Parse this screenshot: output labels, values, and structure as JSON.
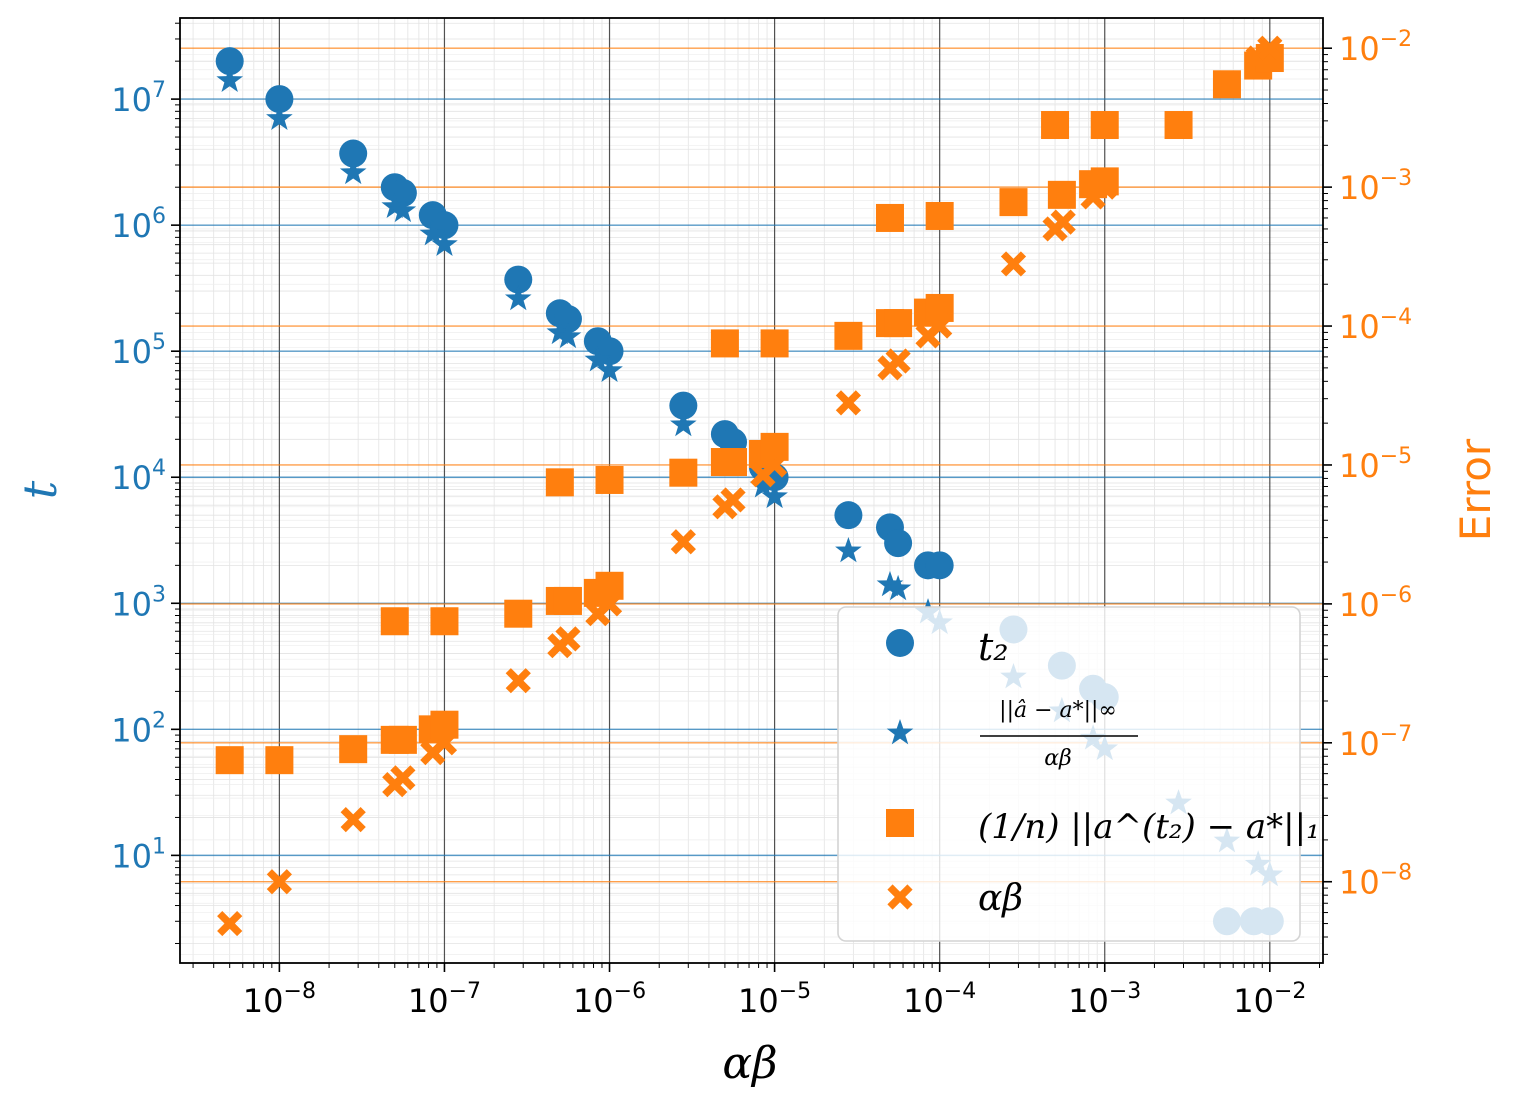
{
  "chart_data": {
    "type": "scatter",
    "xlabel": "αβ",
    "ylabel_left": "t",
    "ylabel_right": "Error",
    "x_scale": "log",
    "y_left_scale": "log",
    "y_right_scale": "log",
    "xlim": [
      2.5e-09,
      0.021
    ],
    "ylim_left": [
      1.4,
      44000000
    ],
    "ylim_right": [
      2.6e-09,
      0.0165
    ],
    "grid": true,
    "legend_position": "lower-right",
    "colors": {
      "t_axis": "#1f77b4",
      "error_axis": "#ff7f0e",
      "blue": "#1f77b4",
      "orange": "#ff7f0e"
    },
    "x_ticks": [
      {
        "value": 1e-08,
        "base": "10",
        "exp": "−8"
      },
      {
        "value": 1e-07,
        "base": "10",
        "exp": "−7"
      },
      {
        "value": 1e-06,
        "base": "10",
        "exp": "−6"
      },
      {
        "value": 1e-05,
        "base": "10",
        "exp": "−5"
      },
      {
        "value": 0.0001,
        "base": "10",
        "exp": "−4"
      },
      {
        "value": 0.001,
        "base": "10",
        "exp": "−3"
      },
      {
        "value": 0.01,
        "base": "10",
        "exp": "−2"
      }
    ],
    "y_left_ticks": [
      {
        "value": 10,
        "base": "10",
        "exp": "1"
      },
      {
        "value": 100,
        "base": "10",
        "exp": "2"
      },
      {
        "value": 1000,
        "base": "10",
        "exp": "3"
      },
      {
        "value": 10000,
        "base": "10",
        "exp": "4"
      },
      {
        "value": 100000,
        "base": "10",
        "exp": "5"
      },
      {
        "value": 1000000,
        "base": "10",
        "exp": "6"
      },
      {
        "value": 10000000,
        "base": "10",
        "exp": "7"
      }
    ],
    "y_right_ticks": [
      {
        "value": 1e-08,
        "base": "10",
        "exp": "−8"
      },
      {
        "value": 1e-07,
        "base": "10",
        "exp": "−7"
      },
      {
        "value": 1e-06,
        "base": "10",
        "exp": "−6"
      },
      {
        "value": 1e-05,
        "base": "10",
        "exp": "−5"
      },
      {
        "value": 0.0001,
        "base": "10",
        "exp": "−4"
      },
      {
        "value": 0.001,
        "base": "10",
        "exp": "−3"
      },
      {
        "value": 0.01,
        "base": "10",
        "exp": "−2"
      }
    ],
    "legend_labels": {
      "t2": "t₂",
      "ratio_numerator": "||â − a*||∞",
      "ratio_denominator": "αβ",
      "error_l1": "(1/n) ||a^(t₂) − a*||₁",
      "alpha_beta": "αβ"
    },
    "series": [
      {
        "name": "t₂",
        "axis": "left",
        "marker": "circle",
        "color": "#1f77b4",
        "points": [
          [
            5e-09,
            20000000
          ],
          [
            1e-08,
            10000000
          ],
          [
            2.8e-08,
            3700000
          ],
          [
            5e-08,
            2000000
          ],
          [
            5.6e-08,
            1800000
          ],
          [
            8.5e-08,
            1200000
          ],
          [
            1e-07,
            1000000
          ],
          [
            2.8e-07,
            370000
          ],
          [
            5e-07,
            200000
          ],
          [
            5.6e-07,
            180000
          ],
          [
            8.5e-07,
            120000
          ],
          [
            1e-06,
            100000
          ],
          [
            2.8e-06,
            37000
          ],
          [
            5e-06,
            22000
          ],
          [
            5.6e-06,
            19000
          ],
          [
            8.5e-06,
            12000
          ],
          [
            1e-05,
            10000
          ],
          [
            2.8e-05,
            5000
          ],
          [
            5e-05,
            4000
          ],
          [
            5.6e-05,
            3000
          ],
          [
            8.5e-05,
            2000
          ],
          [
            0.0001,
            2000
          ],
          [
            0.00028,
            620
          ],
          [
            0.00055,
            320
          ],
          [
            0.00085,
            210
          ],
          [
            0.001,
            180
          ],
          [
            0.0055,
            3
          ],
          [
            0.008,
            3
          ],
          [
            0.01,
            3
          ]
        ]
      },
      {
        "name": "||â − a*||∞ / αβ",
        "axis": "left",
        "marker": "star",
        "color": "#1f77b4",
        "points": [
          [
            5e-09,
            14000000
          ],
          [
            1e-08,
            7000000
          ],
          [
            2.8e-08,
            2600000
          ],
          [
            5e-08,
            1400000
          ],
          [
            5.6e-08,
            1300000
          ],
          [
            8.5e-08,
            850000
          ],
          [
            1e-07,
            700000
          ],
          [
            2.8e-07,
            260000
          ],
          [
            5e-07,
            140000
          ],
          [
            5.6e-07,
            130000
          ],
          [
            8.5e-07,
            85000
          ],
          [
            1e-06,
            70000
          ],
          [
            2.8e-06,
            26000
          ],
          [
            5e-06,
            14000
          ],
          [
            5.6e-06,
            13000
          ],
          [
            8.5e-06,
            8500
          ],
          [
            1e-05,
            7000
          ],
          [
            2.8e-05,
            2600
          ],
          [
            5e-05,
            1400
          ],
          [
            5.6e-05,
            1300
          ],
          [
            8.5e-05,
            850
          ],
          [
            0.0001,
            700
          ],
          [
            0.00028,
            260
          ],
          [
            0.00055,
            140
          ],
          [
            0.00085,
            85
          ],
          [
            0.001,
            70
          ],
          [
            0.0028,
            26
          ],
          [
            0.0055,
            13
          ],
          [
            0.0085,
            8.5
          ],
          [
            0.01,
            7
          ]
        ]
      },
      {
        "name": "(1/n) ||a^(t₂) − a*||₁",
        "axis": "right",
        "marker": "square",
        "color": "#ff7f0e",
        "points": [
          [
            5e-09,
            7.5e-08
          ],
          [
            1e-08,
            7.5e-08
          ],
          [
            2.8e-08,
            9e-08
          ],
          [
            5e-08,
            1.05e-07
          ],
          [
            5.6e-08,
            1.05e-07
          ],
          [
            8.5e-08,
            1.25e-07
          ],
          [
            1e-07,
            1.35e-07
          ],
          [
            5e-08,
            7.5e-07
          ],
          [
            1e-07,
            7.5e-07
          ],
          [
            2.8e-07,
            8.5e-07
          ],
          [
            5e-07,
            1.05e-06
          ],
          [
            5.6e-07,
            1.05e-06
          ],
          [
            8.5e-07,
            1.2e-06
          ],
          [
            1e-06,
            1.35e-06
          ],
          [
            5e-07,
            7.5e-06
          ],
          [
            1e-06,
            7.8e-06
          ],
          [
            2.8e-06,
            8.8e-06
          ],
          [
            5e-06,
            1.05e-05
          ],
          [
            5.6e-06,
            1.05e-05
          ],
          [
            8.5e-06,
            1.2e-05
          ],
          [
            1e-05,
            1.35e-05
          ],
          [
            5e-06,
            7.5e-05
          ],
          [
            1e-05,
            7.5e-05
          ],
          [
            2.8e-05,
            8.5e-05
          ],
          [
            5e-05,
            0.000105
          ],
          [
            5.6e-05,
            0.000105
          ],
          [
            8.5e-05,
            0.000125
          ],
          [
            0.0001,
            0.000135
          ],
          [
            5e-05,
            0.0006
          ],
          [
            0.0001,
            0.00062
          ],
          [
            0.00028,
            0.00078
          ],
          [
            0.00055,
            0.00088
          ],
          [
            0.00085,
            0.00105
          ],
          [
            0.001,
            0.0011
          ],
          [
            0.0005,
            0.0028
          ],
          [
            0.001,
            0.0028
          ],
          [
            0.0028,
            0.0028
          ],
          [
            0.0055,
            0.0055
          ],
          [
            0.0085,
            0.0075
          ],
          [
            0.01,
            0.0085
          ]
        ]
      },
      {
        "name": "αβ",
        "axis": "right",
        "marker": "x",
        "color": "#ff7f0e",
        "points": [
          [
            5e-09,
            5e-09
          ],
          [
            1e-08,
            1e-08
          ],
          [
            2.8e-08,
            2.8e-08
          ],
          [
            5e-08,
            5e-08
          ],
          [
            5.6e-08,
            5.6e-08
          ],
          [
            8.5e-08,
            8.5e-08
          ],
          [
            1e-07,
            1e-07
          ],
          [
            2.8e-07,
            2.8e-07
          ],
          [
            5e-07,
            5e-07
          ],
          [
            5.6e-07,
            5.6e-07
          ],
          [
            8.5e-07,
            8.5e-07
          ],
          [
            1e-06,
            1e-06
          ],
          [
            2.8e-06,
            2.8e-06
          ],
          [
            5e-06,
            5e-06
          ],
          [
            5.6e-06,
            5.6e-06
          ],
          [
            8.5e-06,
            8.5e-06
          ],
          [
            1e-05,
            1e-05
          ],
          [
            2.8e-05,
            2.8e-05
          ],
          [
            5e-05,
            5e-05
          ],
          [
            5.6e-05,
            5.6e-05
          ],
          [
            8.5e-05,
            8.5e-05
          ],
          [
            0.0001,
            0.0001
          ],
          [
            0.00028,
            0.00028
          ],
          [
            0.0005,
            0.0005
          ],
          [
            0.00056,
            0.00056
          ],
          [
            0.00085,
            0.00085
          ],
          [
            0.001,
            0.001
          ],
          [
            0.0028,
            0.0028
          ],
          [
            0.0055,
            0.0055
          ],
          [
            0.0085,
            0.0085
          ],
          [
            0.01,
            0.01
          ]
        ]
      }
    ]
  }
}
